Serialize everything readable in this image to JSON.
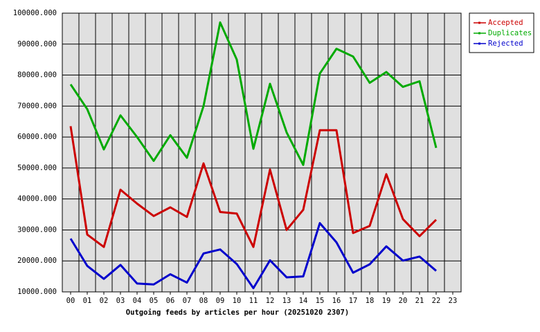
{
  "chart_data": {
    "type": "line",
    "title": "Outgoing feeds by articles per hour (20251020 2307)",
    "categories": [
      "00",
      "01",
      "02",
      "03",
      "04",
      "05",
      "06",
      "07",
      "08",
      "09",
      "10",
      "11",
      "12",
      "13",
      "14",
      "15",
      "16",
      "17",
      "18",
      "19",
      "20",
      "21",
      "22",
      "23"
    ],
    "series": [
      {
        "name": "Accepted",
        "color": "#cc0000",
        "values": [
          63500,
          28500,
          24500,
          43000,
          38500,
          34500,
          37300,
          34200,
          51500,
          35800,
          35300,
          24500,
          49500,
          30000,
          36500,
          62200,
          62200,
          29000,
          31300,
          48000,
          33500,
          28000,
          33300,
          null
        ]
      },
      {
        "name": "Duplicates",
        "color": "#00aa00",
        "values": [
          77000,
          69000,
          56000,
          67000,
          60000,
          52300,
          60600,
          53300,
          70000,
          97000,
          85000,
          56200,
          77200,
          61500,
          51000,
          80500,
          88500,
          86000,
          77500,
          81000,
          76200,
          78000,
          56500,
          null
        ]
      },
      {
        "name": "Rejected",
        "color": "#0000cc",
        "values": [
          27200,
          18400,
          14200,
          18700,
          12700,
          12400,
          15700,
          13000,
          22400,
          23700,
          19000,
          11200,
          20200,
          14700,
          15000,
          32200,
          26000,
          16200,
          18900,
          24700,
          20100,
          21400,
          16800,
          null
        ]
      }
    ],
    "ylim": [
      10000,
      100000
    ],
    "yticks": [
      {
        "value": 10000,
        "label": "10000.000"
      },
      {
        "value": 20000,
        "label": "20000.000"
      },
      {
        "value": 30000,
        "label": "30000.000"
      },
      {
        "value": 40000,
        "label": "40000.000"
      },
      {
        "value": 50000,
        "label": "50000.000"
      },
      {
        "value": 60000,
        "label": "60000.000"
      },
      {
        "value": 70000,
        "label": "70000.000"
      },
      {
        "value": 80000,
        "label": "80000.000"
      },
      {
        "value": 90000,
        "label": "90000.000"
      },
      {
        "value": 100000,
        "label": "100000.000"
      }
    ],
    "grid": true,
    "legend": "top-right"
  }
}
